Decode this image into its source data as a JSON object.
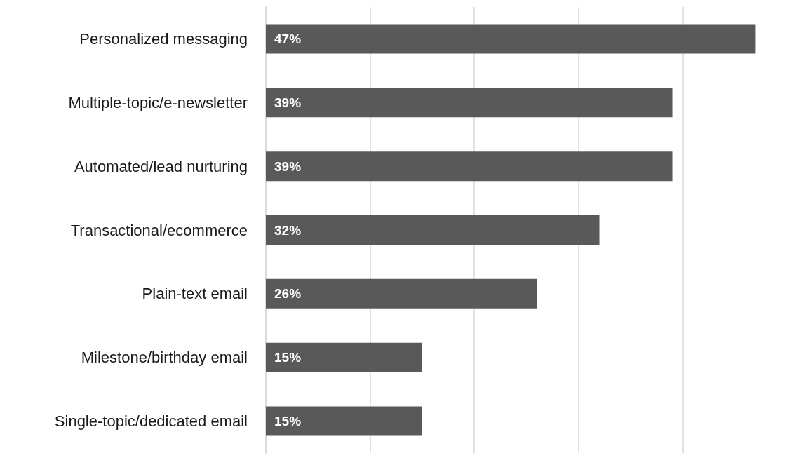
{
  "chart_data": {
    "type": "bar",
    "orientation": "horizontal",
    "categories": [
      "Personalized messaging",
      "Multiple-topic/e-newsletter",
      "Automated/lead nurturing",
      "Transactional/ecommerce",
      "Plain-text email",
      "Milestone/birthday email",
      "Single-topic/dedicated email"
    ],
    "values": [
      47,
      39,
      39,
      32,
      26,
      15,
      15
    ],
    "value_labels": [
      "47%",
      "39%",
      "39%",
      "32%",
      "26%",
      "15%",
      "15%"
    ],
    "color": "#595959",
    "xticks": [
      {
        "value": 0,
        "label": null
      },
      {
        "value": 10,
        "label": null
      },
      {
        "value": 20,
        "label": null
      },
      {
        "value": 30,
        "label": null
      },
      {
        "value": 40,
        "label": null
      }
    ],
    "grid": "x",
    "tick_labels": "y"
  }
}
